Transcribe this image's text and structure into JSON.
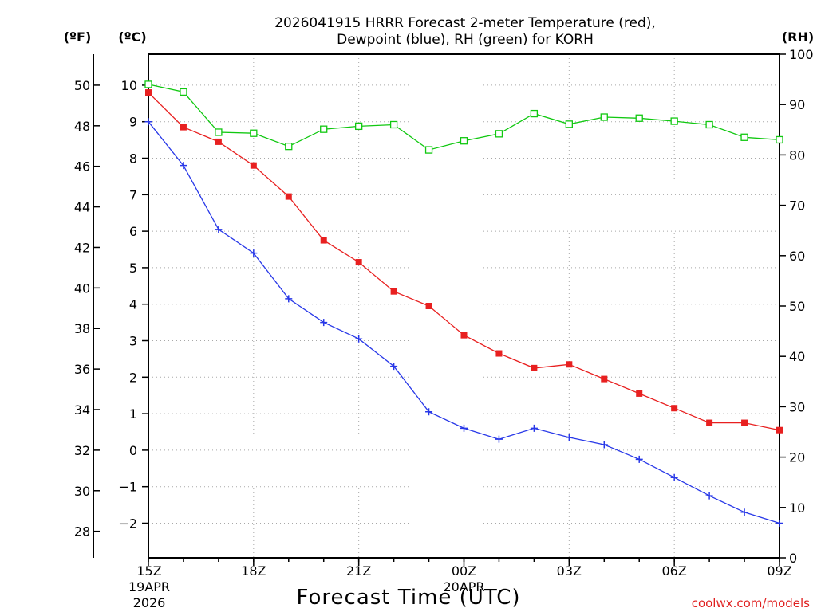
{
  "chart_data": {
    "type": "line",
    "title": "2026041915 HRRR Forecast 2-meter Temperature (red),",
    "subtitle": "Dewpoint (blue), RH (green) for KORH",
    "xlabel": "Forecast Time (UTC)",
    "credit": "coolwx.com/models",
    "units": {
      "fahrenheit": "(ºF)",
      "celsius": "(ºC)",
      "rh": "(RH)"
    },
    "x_hours": [
      0,
      1,
      2,
      3,
      4,
      5,
      6,
      7,
      8,
      9,
      10,
      11,
      12,
      13,
      14,
      15,
      16,
      17,
      18
    ],
    "x_ticks": [
      {
        "hour": 0,
        "label": "15Z",
        "sub1": "19APR",
        "sub2": "2026"
      },
      {
        "hour": 3,
        "label": "18Z",
        "sub1": "",
        "sub2": ""
      },
      {
        "hour": 6,
        "label": "21Z",
        "sub1": "",
        "sub2": ""
      },
      {
        "hour": 9,
        "label": "00Z",
        "sub1": "20APR",
        "sub2": ""
      },
      {
        "hour": 12,
        "label": "03Z",
        "sub1": "",
        "sub2": ""
      },
      {
        "hour": 15,
        "label": "06Z",
        "sub1": "",
        "sub2": ""
      },
      {
        "hour": 18,
        "label": "09Z",
        "sub1": "",
        "sub2": ""
      }
    ],
    "celsius_axis": {
      "range": [
        -2.95,
        10.85
      ],
      "ticks": [
        "10",
        "9",
        "8",
        "7",
        "6",
        "5",
        "4",
        "3",
        "2",
        "1",
        "0",
        "−1",
        "−2"
      ]
    },
    "fahrenheit_axis": {
      "range": [
        26.69,
        51.53
      ],
      "ticks": [
        "50",
        "48",
        "46",
        "44",
        "42",
        "40",
        "38",
        "36",
        "34",
        "32",
        "30",
        "28"
      ]
    },
    "rh_axis": {
      "range": [
        0,
        100
      ],
      "ticks": [
        "100",
        "90",
        "80",
        "70",
        "60",
        "50",
        "40",
        "30",
        "20",
        "10",
        "0"
      ]
    },
    "series": [
      {
        "name": "Temperature",
        "axis": "celsius",
        "color": "#e82020",
        "marker": "filled-square",
        "values": [
          9.8,
          8.85,
          8.45,
          7.8,
          6.95,
          5.75,
          5.15,
          4.35,
          3.95,
          3.15,
          2.65,
          2.25,
          2.35,
          1.95,
          1.55,
          1.15,
          0.75,
          0.75,
          0.55
        ]
      },
      {
        "name": "Dewpoint",
        "axis": "celsius",
        "color": "#2838e8",
        "marker": "plus",
        "values": [
          9.0,
          7.8,
          6.05,
          5.4,
          4.15,
          3.5,
          3.05,
          2.3,
          1.05,
          0.6,
          0.3,
          0.6,
          0.35,
          0.15,
          -0.25,
          -0.75,
          -1.25,
          -1.7,
          -2.0
        ]
      },
      {
        "name": "RH",
        "axis": "rh",
        "color": "#10c810",
        "marker": "open-square",
        "values": [
          94,
          92.5,
          84.5,
          84.3,
          81.7,
          85.1,
          85.7,
          86,
          81,
          82.8,
          84.2,
          88.2,
          86.1,
          87.5,
          87.3,
          86.7,
          86,
          83.5,
          83
        ]
      }
    ]
  }
}
